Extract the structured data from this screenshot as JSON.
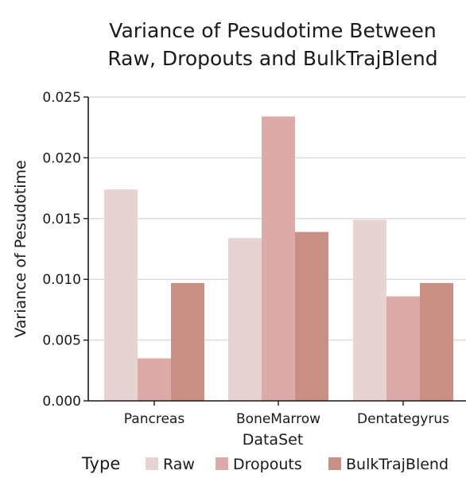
{
  "chart_data": {
    "type": "bar",
    "title_lines": [
      "Variance of Pesudotime Between",
      "Raw, Dropouts and BulkTrajBlend"
    ],
    "xlabel": "DataSet",
    "ylabel": "Variance of Pesudotime",
    "categories": [
      "Pancreas",
      "BoneMarrow",
      "Dentategyrus"
    ],
    "series": [
      {
        "name": "Raw",
        "values": [
          0.0174,
          0.0134,
          0.0149
        ],
        "color": "#e8d3d3"
      },
      {
        "name": "Dropouts",
        "values": [
          0.0035,
          0.0234,
          0.0086
        ],
        "color": "#dcaaa8"
      },
      {
        "name": "BulkTrajBlend",
        "values": [
          0.0097,
          0.0139,
          0.0097
        ],
        "color": "#c98e84"
      }
    ],
    "ylim": [
      0,
      0.025
    ],
    "yticks": [
      "0.000",
      "0.005",
      "0.010",
      "0.015",
      "0.020",
      "0.025"
    ],
    "grid": true,
    "legend": {
      "title": "Type",
      "placement": "bottom"
    }
  }
}
